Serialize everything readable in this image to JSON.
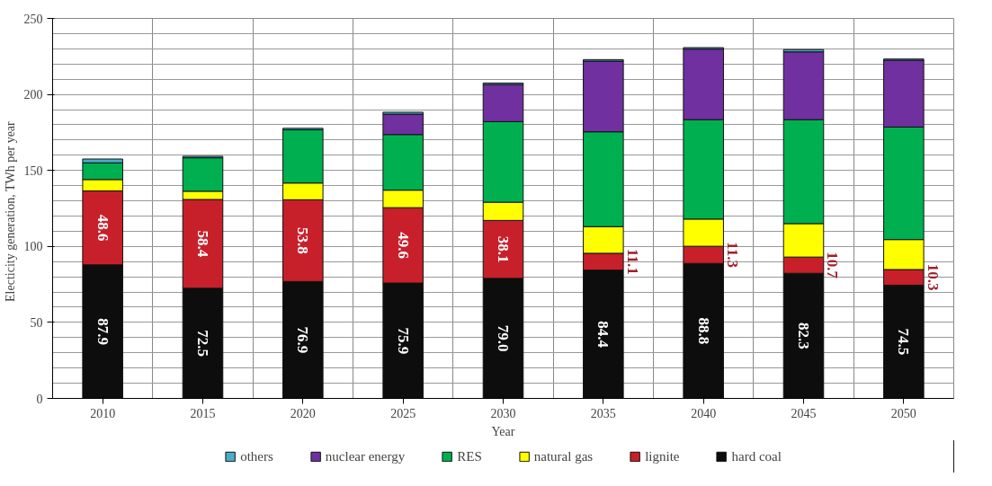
{
  "chart_data": {
    "type": "bar",
    "stacked": true,
    "xlabel": "Year",
    "ylabel": "Electicity  generation,  TWh per year",
    "categories": [
      "2010",
      "2015",
      "2020",
      "2025",
      "2030",
      "2035",
      "2040",
      "2045",
      "2050"
    ],
    "series": [
      {
        "name": "hard coal",
        "color": "#0d0d0d",
        "values": [
          87.9,
          72.5,
          76.9,
          75.9,
          79.0,
          84.4,
          88.8,
          82.3,
          74.5
        ],
        "value_labels": [
          "87.9",
          "72.5",
          "76.9",
          "75.9",
          "79.0",
          "84.4",
          "88.8",
          "82.3",
          "74.5"
        ]
      },
      {
        "name": "lignite",
        "color": "#c8202a",
        "values": [
          48.6,
          58.4,
          53.8,
          49.6,
          38.1,
          11.1,
          11.3,
          10.7,
          10.3
        ],
        "value_labels": [
          "48.6",
          "58.4",
          "53.8",
          "49.6",
          "38.1",
          "11.1",
          "11.3",
          "10.7",
          "10.3"
        ]
      },
      {
        "name": "natural gas",
        "color": "#ffff00",
        "values": [
          7.5,
          5.4,
          11,
          11.5,
          12,
          17.5,
          17.9,
          22,
          19.7
        ]
      },
      {
        "name": "RES",
        "color": "#00b050",
        "values": [
          11,
          22,
          35,
          36.6,
          53,
          62.4,
          65.4,
          68.4,
          74
        ]
      },
      {
        "name": "nuclear energy",
        "color": "#7030a0",
        "values": [
          0,
          0,
          0,
          13.4,
          24.4,
          46.5,
          46.4,
          44.6,
          44
        ]
      },
      {
        "name": "others",
        "color": "#4bacc6",
        "values": [
          2.5,
          1,
          1,
          1.3,
          1,
          1,
          1,
          1.5,
          0.8
        ]
      }
    ],
    "ylim": [
      0,
      250
    ],
    "yticks": [
      0,
      50,
      100,
      150,
      200,
      250
    ],
    "grid": true,
    "legend": "bottom"
  }
}
